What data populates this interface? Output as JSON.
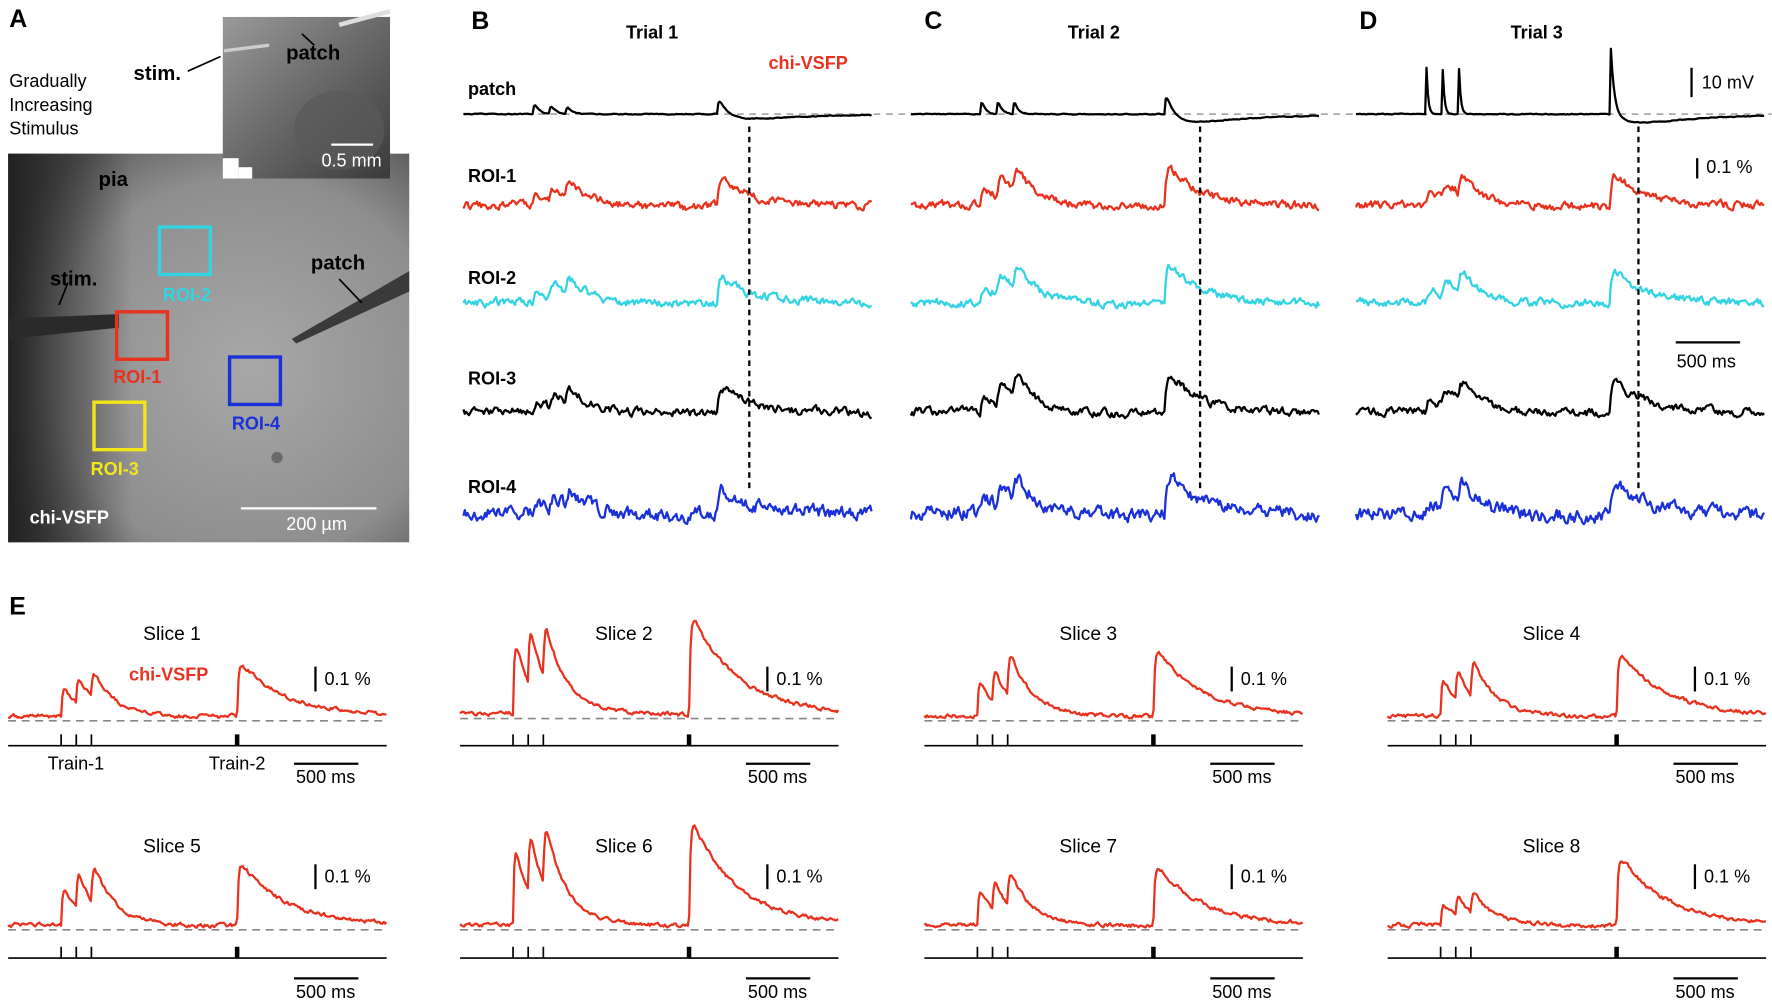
{
  "panel_a": {
    "label": "A",
    "stimulus_note": [
      "Gradually",
      "Increasing",
      "Stimulus"
    ],
    "inset_labels": {
      "stim": "stim.",
      "patch": "patch",
      "scale": "0.5 mm"
    },
    "image_labels": {
      "pia": "pia",
      "stim": "stim.",
      "patch": "patch",
      "dye": "chi-VSFP",
      "scale": "200 µm"
    },
    "rois": [
      {
        "name": "ROI-1",
        "color": "#e8321e"
      },
      {
        "name": "ROI-2",
        "color": "#33d3e3"
      },
      {
        "name": "ROI-3",
        "color": "#f2e51c"
      },
      {
        "name": "ROI-4",
        "color": "#1a30d8"
      }
    ]
  },
  "trials": [
    {
      "label": "B",
      "title": "Trial 1"
    },
    {
      "label": "C",
      "title": "Trial 2"
    },
    {
      "label": "D",
      "title": "Trial 3"
    }
  ],
  "traces": [
    {
      "label": "patch",
      "color": "#000000"
    },
    {
      "label": "ROI-1",
      "color": "#e8321e"
    },
    {
      "label": "ROI-2",
      "color": "#33d3e3"
    },
    {
      "label": "ROI-3",
      "color": "#000000"
    },
    {
      "label": "ROI-4",
      "color": "#1a30d8"
    }
  ],
  "dye_label": "chi-VSFP",
  "dye_color": "#e8321e",
  "scale_bars": {
    "voltage": "10 mV",
    "fluorescence": "0.1 %",
    "time": "500 ms"
  },
  "panel_e": {
    "label": "E",
    "dye_label": "chi-VSFP",
    "slices": [
      "Slice 1",
      "Slice 2",
      "Slice 3",
      "Slice 4",
      "Slice 5",
      "Slice 6",
      "Slice 7",
      "Slice 8"
    ],
    "trains": [
      "Train-1",
      "Train-2"
    ],
    "scale_fluorescence": "0.1 %",
    "scale_time": "500 ms"
  }
}
